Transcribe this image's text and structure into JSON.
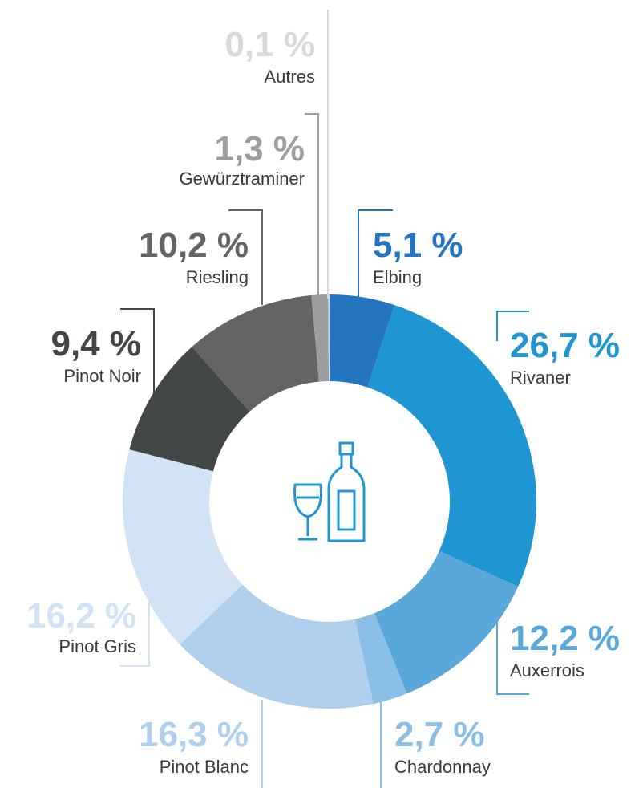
{
  "chart_data": {
    "type": "pie",
    "donut": true,
    "categories": [
      "Elbing",
      "Rivaner",
      "Auxerrois",
      "Chardonnay",
      "Pinot Blanc",
      "Pinot Gris",
      "Pinot Noir",
      "Riesling",
      "Gewürztraminer",
      "Autres"
    ],
    "values": [
      5.1,
      26.7,
      12.2,
      2.7,
      16.3,
      16.2,
      9.4,
      10.2,
      1.3,
      0.1
    ],
    "value_labels": [
      "5,1 %",
      "26,7 %",
      "12,2 %",
      "2,7 %",
      "16,3 %",
      "16,2 %",
      "9,4 %",
      "10,2 %",
      "1,3 %",
      "0,1 %"
    ],
    "colors": [
      "#2474c0",
      "#1f96d2",
      "#5aa8da",
      "#8cbfe6",
      "#b0cfec",
      "#d2e3f5",
      "#434647",
      "#636466",
      "#9c9d9f",
      "#d9d9d9"
    ]
  }
}
